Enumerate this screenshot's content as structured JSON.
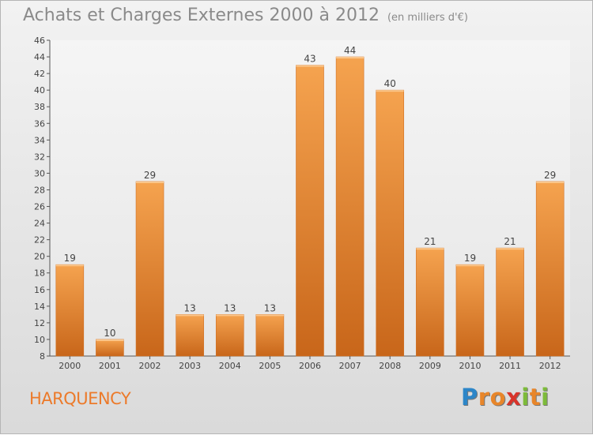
{
  "chart_data": {
    "type": "bar",
    "title": "Achats et Charges Externes 2000 à 2012",
    "subtitle": "(en milliers d'€)",
    "categories": [
      "2000",
      "2001",
      "2002",
      "2003",
      "2004",
      "2005",
      "2006",
      "2007",
      "2008",
      "2009",
      "2010",
      "2011",
      "2012"
    ],
    "values": [
      19,
      10,
      29,
      13,
      13,
      13,
      43,
      44,
      40,
      21,
      19,
      21,
      29
    ],
    "ylim": [
      8,
      46
    ],
    "yticks": [
      8,
      10,
      12,
      14,
      16,
      18,
      20,
      22,
      24,
      26,
      28,
      30,
      32,
      34,
      36,
      38,
      40,
      42,
      44,
      46
    ],
    "grid": false,
    "legend": "none",
    "bar_color_top": "#f5a34f",
    "bar_color_bottom": "#c8661a"
  },
  "footer": {
    "town": "HARQUENCY",
    "logo_letters": [
      "P",
      "r",
      "o",
      "x",
      "i",
      "t",
      "i"
    ],
    "logo_colors": [
      "#2d86c8",
      "#e8862a",
      "#e8862a",
      "#d8342b",
      "#7dbb3a",
      "#e8862a",
      "#7dbb3a"
    ]
  },
  "colors": {
    "title": "#8a8a8a",
    "town": "#ec7a2a"
  }
}
